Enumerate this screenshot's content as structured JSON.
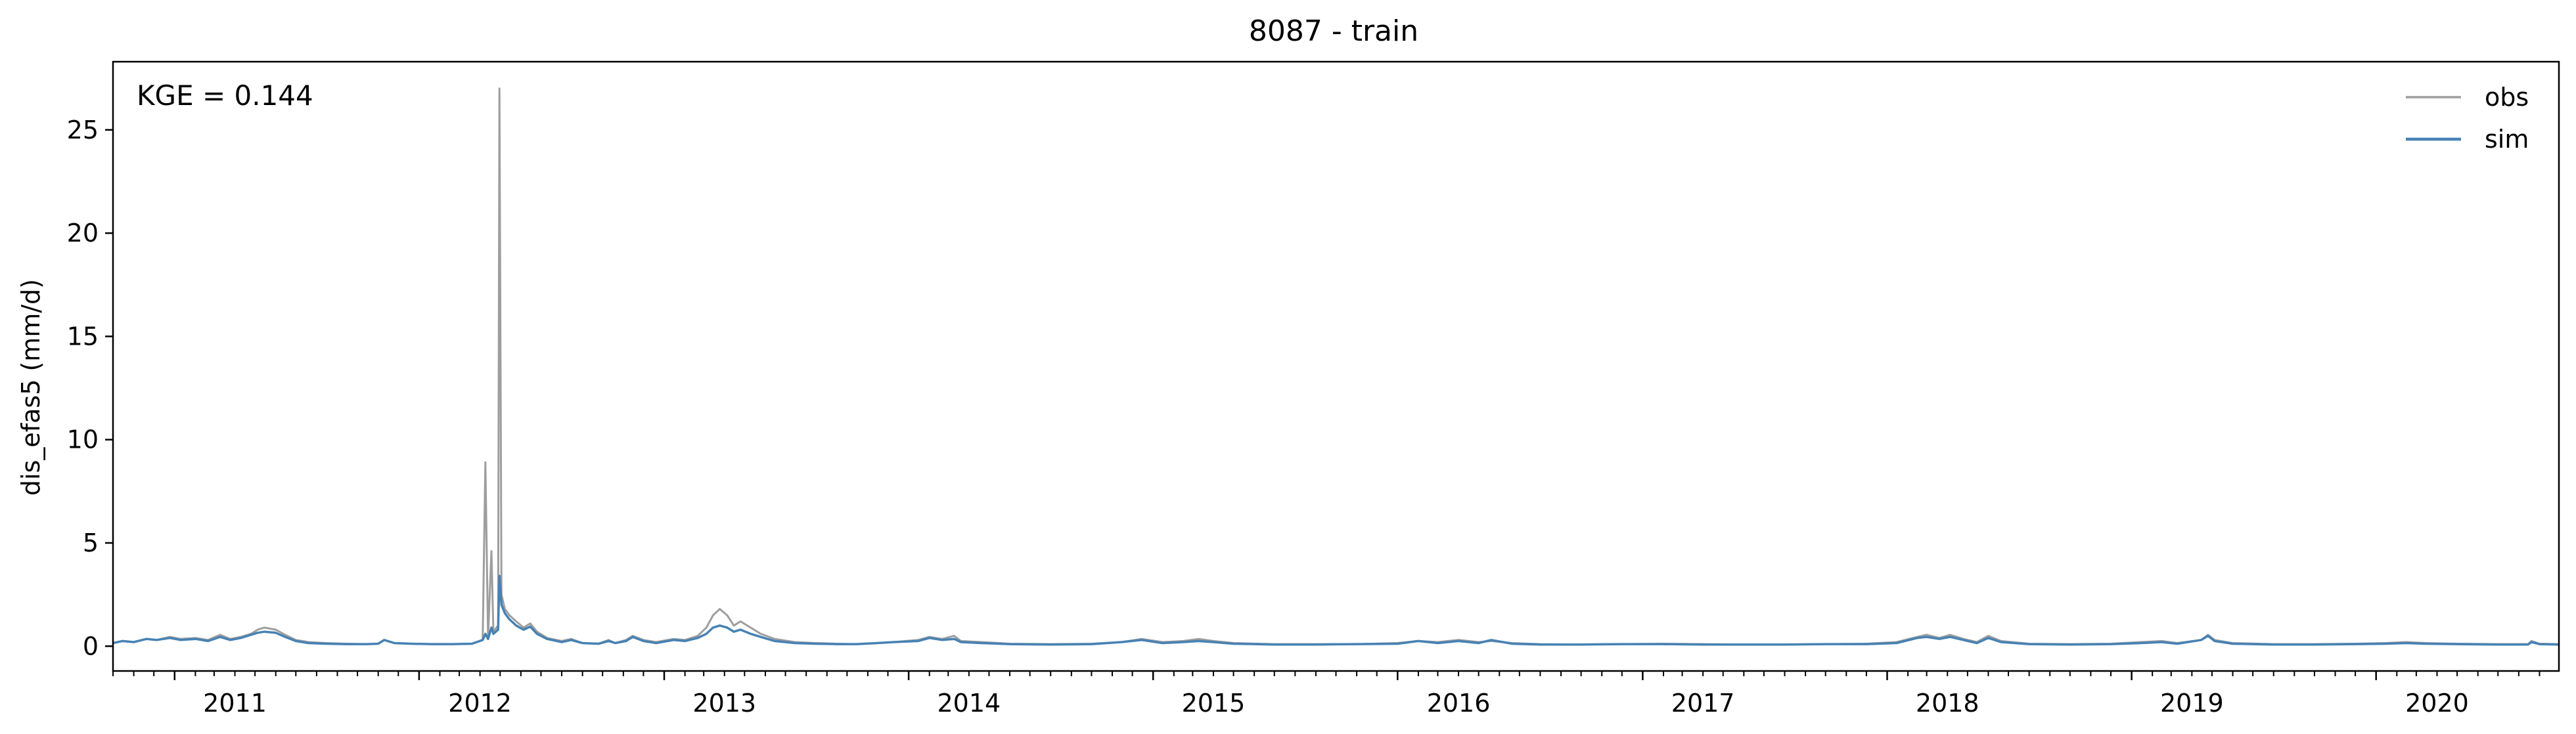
{
  "chart_data": {
    "type": "line",
    "title": "8087 - train",
    "xlabel": "",
    "ylabel": "dis_efas5 (mm/d)",
    "annotation": "KGE = 0.144",
    "xlim": [
      "2010-10-01",
      "2020-09-30"
    ],
    "ylim": [
      -1.2,
      28.3
    ],
    "x_tick_labels": [
      "2011",
      "2012",
      "2013",
      "2014",
      "2015",
      "2016",
      "2017",
      "2018",
      "2019",
      "2020"
    ],
    "y_ticks": [
      0,
      5,
      10,
      15,
      20,
      25
    ],
    "grid": false,
    "legend": {
      "position": "top-right",
      "entries": [
        "obs",
        "sim"
      ]
    },
    "series": [
      {
        "name": "obs",
        "color": "#9e9e9e",
        "points": [
          [
            "2010-10-01",
            0.15
          ],
          [
            "2010-10-15",
            0.25
          ],
          [
            "2010-11-01",
            0.2
          ],
          [
            "2010-11-20",
            0.35
          ],
          [
            "2010-12-05",
            0.3
          ],
          [
            "2010-12-25",
            0.45
          ],
          [
            "2011-01-10",
            0.35
          ],
          [
            "2011-02-01",
            0.4
          ],
          [
            "2011-02-20",
            0.3
          ],
          [
            "2011-03-10",
            0.55
          ],
          [
            "2011-03-25",
            0.35
          ],
          [
            "2011-04-10",
            0.45
          ],
          [
            "2011-04-25",
            0.6
          ],
          [
            "2011-05-05",
            0.8
          ],
          [
            "2011-05-15",
            0.9
          ],
          [
            "2011-06-01",
            0.8
          ],
          [
            "2011-06-15",
            0.55
          ],
          [
            "2011-07-01",
            0.3
          ],
          [
            "2011-07-20",
            0.2
          ],
          [
            "2011-08-15",
            0.15
          ],
          [
            "2011-09-15",
            0.12
          ],
          [
            "2011-10-15",
            0.1
          ],
          [
            "2011-11-01",
            0.12
          ],
          [
            "2011-11-10",
            0.3
          ],
          [
            "2011-11-25",
            0.15
          ],
          [
            "2011-12-20",
            0.12
          ],
          [
            "2012-01-20",
            0.1
          ],
          [
            "2012-02-20",
            0.1
          ],
          [
            "2012-03-20",
            0.12
          ],
          [
            "2012-04-05",
            0.3
          ],
          [
            "2012-04-09",
            8.9
          ],
          [
            "2012-04-13",
            0.4
          ],
          [
            "2012-04-18",
            4.6
          ],
          [
            "2012-04-21",
            0.7
          ],
          [
            "2012-04-28",
            1.0
          ],
          [
            "2012-04-30",
            27.0
          ],
          [
            "2012-05-03",
            2.5
          ],
          [
            "2012-05-08",
            1.8
          ],
          [
            "2012-05-15",
            1.5
          ],
          [
            "2012-05-25",
            1.2
          ],
          [
            "2012-06-05",
            0.9
          ],
          [
            "2012-06-15",
            1.1
          ],
          [
            "2012-06-25",
            0.7
          ],
          [
            "2012-07-10",
            0.4
          ],
          [
            "2012-08-01",
            0.25
          ],
          [
            "2012-08-15",
            0.35
          ],
          [
            "2012-09-01",
            0.15
          ],
          [
            "2012-09-25",
            0.12
          ],
          [
            "2012-10-10",
            0.3
          ],
          [
            "2012-10-20",
            0.15
          ],
          [
            "2012-11-05",
            0.3
          ],
          [
            "2012-11-15",
            0.5
          ],
          [
            "2012-12-01",
            0.3
          ],
          [
            "2012-12-20",
            0.2
          ],
          [
            "2013-01-15",
            0.35
          ],
          [
            "2013-02-01",
            0.3
          ],
          [
            "2013-02-20",
            0.5
          ],
          [
            "2013-03-05",
            0.9
          ],
          [
            "2013-03-15",
            1.5
          ],
          [
            "2013-03-25",
            1.8
          ],
          [
            "2013-04-05",
            1.5
          ],
          [
            "2013-04-15",
            1.0
          ],
          [
            "2013-04-25",
            1.2
          ],
          [
            "2013-05-10",
            0.9
          ],
          [
            "2013-05-25",
            0.6
          ],
          [
            "2013-06-15",
            0.35
          ],
          [
            "2013-07-15",
            0.2
          ],
          [
            "2013-08-15",
            0.15
          ],
          [
            "2013-09-15",
            0.12
          ],
          [
            "2013-10-15",
            0.1
          ],
          [
            "2013-11-15",
            0.15
          ],
          [
            "2013-12-10",
            0.2
          ],
          [
            "2014-01-15",
            0.3
          ],
          [
            "2014-02-01",
            0.45
          ],
          [
            "2014-02-20",
            0.35
          ],
          [
            "2014-03-10",
            0.5
          ],
          [
            "2014-03-20",
            0.25
          ],
          [
            "2014-04-20",
            0.2
          ],
          [
            "2014-06-01",
            0.12
          ],
          [
            "2014-08-01",
            0.1
          ],
          [
            "2014-10-01",
            0.12
          ],
          [
            "2014-11-15",
            0.2
          ],
          [
            "2014-12-15",
            0.35
          ],
          [
            "2015-01-15",
            0.2
          ],
          [
            "2015-02-15",
            0.25
          ],
          [
            "2015-03-10",
            0.35
          ],
          [
            "2015-04-01",
            0.25
          ],
          [
            "2015-05-01",
            0.15
          ],
          [
            "2015-07-01",
            0.1
          ],
          [
            "2015-09-01",
            0.1
          ],
          [
            "2015-11-01",
            0.1
          ],
          [
            "2016-01-01",
            0.15
          ],
          [
            "2016-02-01",
            0.25
          ],
          [
            "2016-03-01",
            0.2
          ],
          [
            "2016-04-01",
            0.3
          ],
          [
            "2016-05-01",
            0.2
          ],
          [
            "2016-05-20",
            0.25
          ],
          [
            "2016-06-20",
            0.15
          ],
          [
            "2016-08-01",
            0.1
          ],
          [
            "2016-10-01",
            0.08
          ],
          [
            "2016-12-01",
            0.1
          ],
          [
            "2017-02-01",
            0.12
          ],
          [
            "2017-04-01",
            0.1
          ],
          [
            "2017-06-01",
            0.08
          ],
          [
            "2017-08-01",
            0.08
          ],
          [
            "2017-10-01",
            0.1
          ],
          [
            "2017-12-01",
            0.12
          ],
          [
            "2018-01-15",
            0.2
          ],
          [
            "2018-02-15",
            0.45
          ],
          [
            "2018-03-01",
            0.55
          ],
          [
            "2018-03-20",
            0.4
          ],
          [
            "2018-04-05",
            0.55
          ],
          [
            "2018-04-25",
            0.35
          ],
          [
            "2018-05-15",
            0.2
          ],
          [
            "2018-06-01",
            0.5
          ],
          [
            "2018-06-20",
            0.25
          ],
          [
            "2018-08-01",
            0.12
          ],
          [
            "2018-10-01",
            0.1
          ],
          [
            "2018-12-01",
            0.12
          ],
          [
            "2019-01-15",
            0.2
          ],
          [
            "2019-02-15",
            0.25
          ],
          [
            "2019-03-10",
            0.15
          ],
          [
            "2019-04-15",
            0.3
          ],
          [
            "2019-04-25",
            0.55
          ],
          [
            "2019-05-05",
            0.3
          ],
          [
            "2019-06-01",
            0.15
          ],
          [
            "2019-08-01",
            0.1
          ],
          [
            "2019-10-01",
            0.1
          ],
          [
            "2019-12-01",
            0.12
          ],
          [
            "2020-01-15",
            0.15
          ],
          [
            "2020-02-15",
            0.2
          ],
          [
            "2020-03-15",
            0.15
          ],
          [
            "2020-05-01",
            0.12
          ],
          [
            "2020-07-01",
            0.1
          ],
          [
            "2020-08-15",
            0.1
          ],
          [
            "2020-08-20",
            0.25
          ],
          [
            "2020-09-01",
            0.12
          ],
          [
            "2020-09-30",
            0.1
          ]
        ]
      },
      {
        "name": "sim",
        "color": "#4682b4",
        "points": [
          [
            "2010-10-01",
            0.15
          ],
          [
            "2010-10-15",
            0.25
          ],
          [
            "2010-11-01",
            0.2
          ],
          [
            "2010-11-20",
            0.35
          ],
          [
            "2010-12-05",
            0.3
          ],
          [
            "2010-12-25",
            0.4
          ],
          [
            "2011-01-10",
            0.3
          ],
          [
            "2011-02-01",
            0.35
          ],
          [
            "2011-02-20",
            0.25
          ],
          [
            "2011-03-10",
            0.45
          ],
          [
            "2011-03-25",
            0.3
          ],
          [
            "2011-04-10",
            0.4
          ],
          [
            "2011-04-25",
            0.55
          ],
          [
            "2011-05-05",
            0.65
          ],
          [
            "2011-05-15",
            0.7
          ],
          [
            "2011-06-01",
            0.65
          ],
          [
            "2011-06-15",
            0.45
          ],
          [
            "2011-07-01",
            0.25
          ],
          [
            "2011-07-20",
            0.15
          ],
          [
            "2011-08-15",
            0.12
          ],
          [
            "2011-09-15",
            0.1
          ],
          [
            "2011-10-15",
            0.1
          ],
          [
            "2011-11-01",
            0.12
          ],
          [
            "2011-11-10",
            0.3
          ],
          [
            "2011-11-25",
            0.15
          ],
          [
            "2011-12-20",
            0.12
          ],
          [
            "2012-01-20",
            0.1
          ],
          [
            "2012-02-20",
            0.1
          ],
          [
            "2012-03-20",
            0.12
          ],
          [
            "2012-04-05",
            0.3
          ],
          [
            "2012-04-09",
            0.6
          ],
          [
            "2012-04-13",
            0.35
          ],
          [
            "2012-04-18",
            0.9
          ],
          [
            "2012-04-21",
            0.6
          ],
          [
            "2012-04-28",
            0.8
          ],
          [
            "2012-04-30",
            3.4
          ],
          [
            "2012-05-03",
            2.0
          ],
          [
            "2012-05-08",
            1.6
          ],
          [
            "2012-05-15",
            1.3
          ],
          [
            "2012-05-25",
            1.0
          ],
          [
            "2012-06-05",
            0.8
          ],
          [
            "2012-06-15",
            0.95
          ],
          [
            "2012-06-25",
            0.6
          ],
          [
            "2012-07-10",
            0.35
          ],
          [
            "2012-08-01",
            0.2
          ],
          [
            "2012-08-15",
            0.3
          ],
          [
            "2012-09-01",
            0.15
          ],
          [
            "2012-09-25",
            0.12
          ],
          [
            "2012-10-10",
            0.25
          ],
          [
            "2012-10-20",
            0.15
          ],
          [
            "2012-11-05",
            0.25
          ],
          [
            "2012-11-15",
            0.45
          ],
          [
            "2012-12-01",
            0.25
          ],
          [
            "2012-12-20",
            0.15
          ],
          [
            "2013-01-15",
            0.3
          ],
          [
            "2013-02-01",
            0.25
          ],
          [
            "2013-02-20",
            0.4
          ],
          [
            "2013-03-05",
            0.6
          ],
          [
            "2013-03-15",
            0.9
          ],
          [
            "2013-03-25",
            1.0
          ],
          [
            "2013-04-05",
            0.9
          ],
          [
            "2013-04-15",
            0.7
          ],
          [
            "2013-04-25",
            0.8
          ],
          [
            "2013-05-10",
            0.6
          ],
          [
            "2013-05-25",
            0.45
          ],
          [
            "2013-06-15",
            0.25
          ],
          [
            "2013-07-15",
            0.15
          ],
          [
            "2013-08-15",
            0.12
          ],
          [
            "2013-09-15",
            0.1
          ],
          [
            "2013-10-15",
            0.1
          ],
          [
            "2013-11-15",
            0.15
          ],
          [
            "2013-12-10",
            0.2
          ],
          [
            "2014-01-15",
            0.25
          ],
          [
            "2014-02-01",
            0.4
          ],
          [
            "2014-02-20",
            0.3
          ],
          [
            "2014-03-10",
            0.35
          ],
          [
            "2014-03-20",
            0.2
          ],
          [
            "2014-04-20",
            0.15
          ],
          [
            "2014-06-01",
            0.1
          ],
          [
            "2014-08-01",
            0.08
          ],
          [
            "2014-10-01",
            0.1
          ],
          [
            "2014-11-15",
            0.2
          ],
          [
            "2014-12-15",
            0.3
          ],
          [
            "2015-01-15",
            0.15
          ],
          [
            "2015-02-15",
            0.2
          ],
          [
            "2015-03-10",
            0.25
          ],
          [
            "2015-04-01",
            0.2
          ],
          [
            "2015-05-01",
            0.12
          ],
          [
            "2015-07-01",
            0.08
          ],
          [
            "2015-09-01",
            0.08
          ],
          [
            "2015-11-01",
            0.1
          ],
          [
            "2016-01-01",
            0.12
          ],
          [
            "2016-02-01",
            0.25
          ],
          [
            "2016-03-01",
            0.15
          ],
          [
            "2016-04-01",
            0.25
          ],
          [
            "2016-05-01",
            0.15
          ],
          [
            "2016-05-20",
            0.3
          ],
          [
            "2016-06-20",
            0.12
          ],
          [
            "2016-08-01",
            0.08
          ],
          [
            "2016-10-01",
            0.08
          ],
          [
            "2016-12-01",
            0.1
          ],
          [
            "2017-02-01",
            0.1
          ],
          [
            "2017-04-01",
            0.08
          ],
          [
            "2017-06-01",
            0.08
          ],
          [
            "2017-08-01",
            0.08
          ],
          [
            "2017-10-01",
            0.1
          ],
          [
            "2017-12-01",
            0.1
          ],
          [
            "2018-01-15",
            0.15
          ],
          [
            "2018-02-15",
            0.4
          ],
          [
            "2018-03-01",
            0.45
          ],
          [
            "2018-03-20",
            0.35
          ],
          [
            "2018-04-05",
            0.45
          ],
          [
            "2018-04-25",
            0.3
          ],
          [
            "2018-05-15",
            0.15
          ],
          [
            "2018-06-01",
            0.4
          ],
          [
            "2018-06-20",
            0.2
          ],
          [
            "2018-08-01",
            0.1
          ],
          [
            "2018-10-01",
            0.08
          ],
          [
            "2018-12-01",
            0.1
          ],
          [
            "2019-01-15",
            0.15
          ],
          [
            "2019-02-15",
            0.2
          ],
          [
            "2019-03-10",
            0.12
          ],
          [
            "2019-04-15",
            0.3
          ],
          [
            "2019-04-25",
            0.5
          ],
          [
            "2019-05-05",
            0.25
          ],
          [
            "2019-06-01",
            0.12
          ],
          [
            "2019-08-01",
            0.08
          ],
          [
            "2019-10-01",
            0.08
          ],
          [
            "2019-12-01",
            0.1
          ],
          [
            "2020-01-15",
            0.12
          ],
          [
            "2020-02-15",
            0.15
          ],
          [
            "2020-03-15",
            0.12
          ],
          [
            "2020-05-01",
            0.1
          ],
          [
            "2020-07-01",
            0.08
          ],
          [
            "2020-08-15",
            0.08
          ],
          [
            "2020-08-20",
            0.2
          ],
          [
            "2020-09-01",
            0.1
          ],
          [
            "2020-09-30",
            0.08
          ]
        ]
      }
    ]
  }
}
